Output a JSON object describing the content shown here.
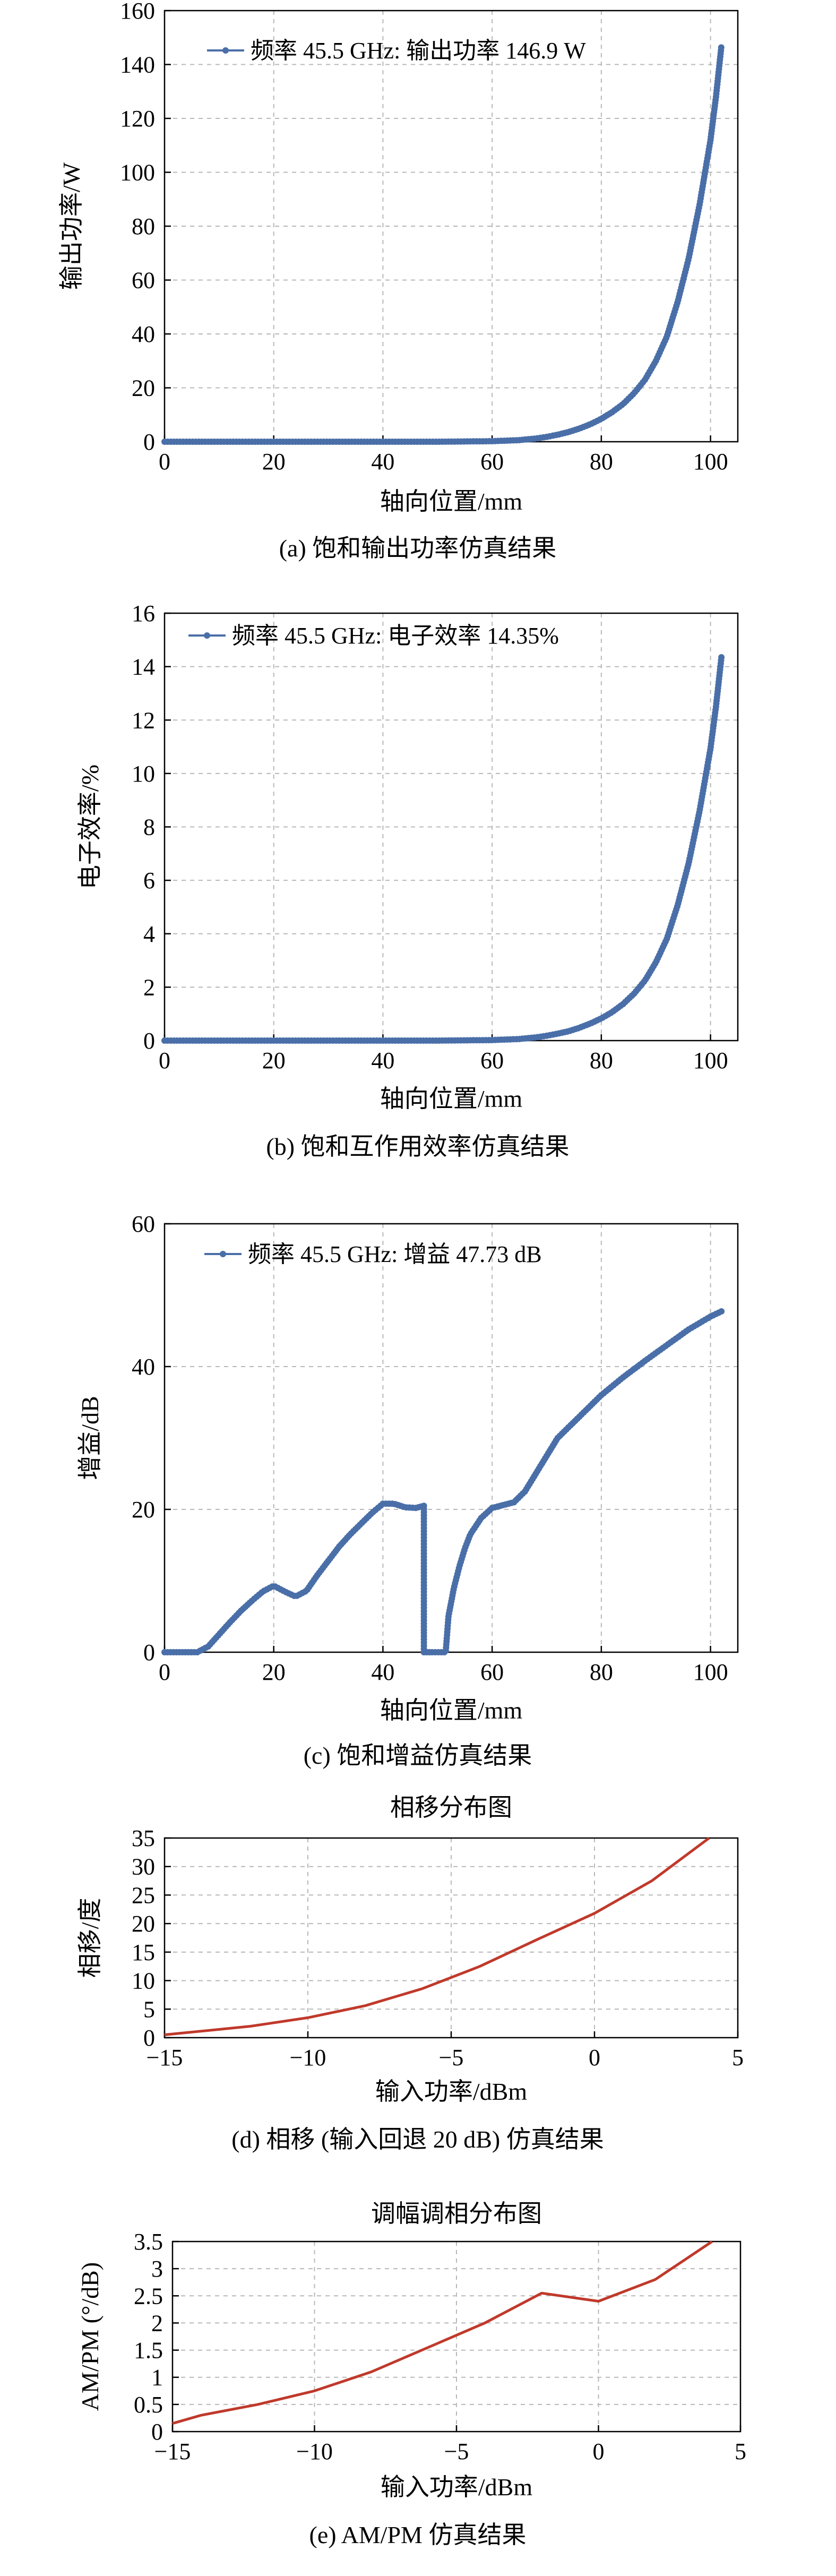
{
  "chart_data": [
    {
      "type": "scatter",
      "caption": "(a) 饱和输出功率仿真结果",
      "xlabel": "轴向位置/mm",
      "ylabel": "输出功率/W",
      "xlim": [
        0,
        105
      ],
      "ylim": [
        0,
        160
      ],
      "xticks": [
        0,
        20,
        40,
        60,
        80,
        100
      ],
      "yticks": [
        0,
        20,
        40,
        60,
        80,
        100,
        120,
        140,
        160
      ],
      "grid": true,
      "legend_position": "top-left",
      "series": [
        {
          "name": "频率 45.5 GHz: 输出功率 146.9 W",
          "color": "#4a6fa8",
          "x": [
            0,
            10,
            20,
            30,
            40,
            50,
            60,
            65,
            68,
            70,
            72,
            74,
            76,
            78,
            80,
            82,
            84,
            86,
            88,
            90,
            92,
            94,
            96,
            98,
            100,
            101,
            102
          ],
          "y": [
            0,
            0,
            0,
            0,
            0,
            0,
            0.2,
            0.6,
            1.2,
            1.8,
            2.6,
            3.6,
            4.9,
            6.5,
            8.5,
            11,
            14,
            18,
            23,
            30,
            39,
            52,
            68,
            88,
            112,
            128,
            146.9
          ]
        }
      ]
    },
    {
      "type": "scatter",
      "caption": "(b) 饱和互作用效率仿真结果",
      "xlabel": "轴向位置/mm",
      "ylabel": "电子效率/%",
      "xlim": [
        0,
        105
      ],
      "ylim": [
        0,
        16
      ],
      "xticks": [
        0,
        20,
        40,
        60,
        80,
        100
      ],
      "yticks": [
        0,
        2,
        4,
        6,
        8,
        10,
        12,
        14,
        16
      ],
      "grid": true,
      "legend_position": "top-left",
      "series": [
        {
          "name": "频率 45.5 GHz: 电子效率 14.35%",
          "color": "#4a6fa8",
          "x": [
            0,
            10,
            20,
            30,
            40,
            50,
            60,
            65,
            68,
            70,
            72,
            74,
            76,
            78,
            80,
            82,
            84,
            86,
            88,
            90,
            92,
            94,
            96,
            98,
            100,
            101,
            102
          ],
          "y": [
            0,
            0,
            0,
            0,
            0,
            0,
            0.02,
            0.06,
            0.12,
            0.18,
            0.26,
            0.35,
            0.48,
            0.64,
            0.83,
            1.07,
            1.37,
            1.76,
            2.25,
            2.93,
            3.81,
            5.08,
            6.64,
            8.6,
            10.94,
            12.5,
            14.35
          ]
        }
      ]
    },
    {
      "type": "scatter",
      "caption": "(c) 饱和增益仿真结果",
      "xlabel": "轴向位置/mm",
      "ylabel": "增益/dB",
      "xlim": [
        0,
        105
      ],
      "ylim": [
        0,
        60
      ],
      "xticks": [
        0,
        20,
        40,
        60,
        80,
        100
      ],
      "yticks": [
        0,
        20,
        40,
        60
      ],
      "grid": true,
      "legend_position": "top-left",
      "series": [
        {
          "name": "频率 45.5 GHz: 增益 47.73 dB",
          "color": "#4a6fa8",
          "x": [
            0,
            3,
            6,
            8,
            10,
            12,
            14,
            16,
            18,
            20,
            22,
            24,
            26,
            28,
            30,
            32,
            34,
            36,
            38,
            40,
            42,
            44,
            46,
            47.5,
            47.5,
            49,
            51,
            51.5,
            52,
            53,
            54,
            55,
            56,
            58,
            60,
            62,
            64,
            66,
            68,
            70,
            72,
            76,
            80,
            84,
            88,
            92,
            96,
            100,
            102
          ],
          "y": [
            0,
            0,
            0,
            0.8,
            2.5,
            4.2,
            5.8,
            7.2,
            8.5,
            9.3,
            8.5,
            7.8,
            8.6,
            10.8,
            12.8,
            14.8,
            16.5,
            18,
            19.5,
            20.8,
            20.8,
            20.3,
            20.2,
            20.5,
            0,
            0,
            0,
            0,
            5,
            9,
            12,
            14.5,
            16.5,
            18.8,
            20.2,
            20.6,
            21,
            22.5,
            25,
            27.5,
            30,
            33,
            36,
            38.5,
            40.8,
            43,
            45.2,
            47,
            47.73
          ]
        }
      ]
    },
    {
      "type": "line",
      "title": "相移分布图",
      "caption": "(d) 相移 (输入回退 20 dB) 仿真结果",
      "xlabel": "输入功率/dBm",
      "ylabel": "相移/度",
      "xlim": [
        -15,
        5
      ],
      "ylim": [
        0,
        35
      ],
      "xticks": [
        -15,
        -10,
        -5,
        0,
        5
      ],
      "yticks": [
        0,
        5,
        10,
        15,
        20,
        25,
        30,
        35
      ],
      "grid": true,
      "series": [
        {
          "color": "#c0392b",
          "x": [
            -15,
            -14,
            -12,
            -10,
            -8,
            -6,
            -4,
            -2,
            0,
            2,
            4
          ],
          "y": [
            0.5,
            1.0,
            2.0,
            3.5,
            5.6,
            8.6,
            12.5,
            17.2,
            21.8,
            27.5,
            35
          ]
        }
      ]
    },
    {
      "type": "line",
      "title": "调幅调相分布图",
      "caption": "(e) AM/PM 仿真结果",
      "xlabel": "输入功率/dBm",
      "ylabel": "AM/PM (°/dB)",
      "xlim": [
        -15,
        5
      ],
      "ylim": [
        0,
        3.5
      ],
      "xticks": [
        -15,
        -10,
        -5,
        0,
        5
      ],
      "yticks": [
        0,
        0.5,
        1,
        1.5,
        2,
        2.5,
        3,
        3.5
      ],
      "grid": true,
      "series": [
        {
          "color": "#c0392b",
          "x": [
            -15,
            -14,
            -12,
            -10,
            -8,
            -6,
            -4,
            -2,
            0,
            2,
            4
          ],
          "y": [
            0.15,
            0.3,
            0.5,
            0.75,
            1.1,
            1.55,
            2.0,
            2.55,
            2.4,
            2.8,
            3.5
          ]
        }
      ]
    }
  ]
}
